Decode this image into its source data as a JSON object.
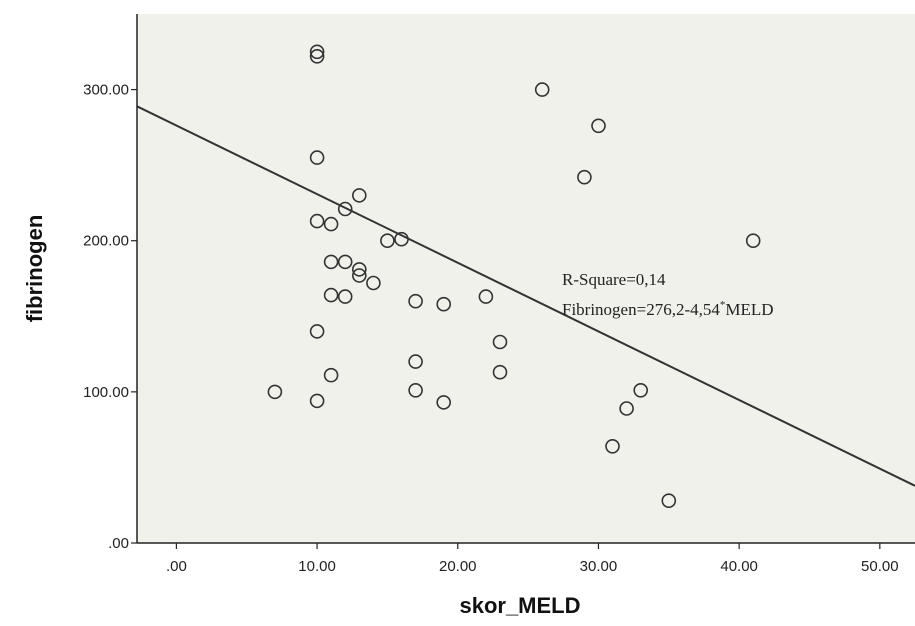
{
  "chart_data": {
    "type": "scatter",
    "title": "",
    "xlabel": "skor_MELD",
    "ylabel": "fibrinogen",
    "xlim": [
      -2.8,
      52.5
    ],
    "ylim": [
      0,
      350
    ],
    "x_ticks": [
      ".00",
      "10.00",
      "20.00",
      "30.00",
      "40.00",
      "50.00"
    ],
    "x_tick_values": [
      0,
      10,
      20,
      30,
      40,
      50
    ],
    "y_ticks": [
      ".00",
      "100.00",
      "200.00",
      "300.00"
    ],
    "y_tick_values": [
      0,
      100,
      200,
      300
    ],
    "grid": false,
    "points": [
      {
        "x": 7,
        "y": 100
      },
      {
        "x": 10,
        "y": 325
      },
      {
        "x": 10,
        "y": 322
      },
      {
        "x": 10,
        "y": 255
      },
      {
        "x": 10,
        "y": 213
      },
      {
        "x": 10,
        "y": 140
      },
      {
        "x": 10,
        "y": 94
      },
      {
        "x": 11,
        "y": 211
      },
      {
        "x": 11,
        "y": 186
      },
      {
        "x": 11,
        "y": 164
      },
      {
        "x": 11,
        "y": 111
      },
      {
        "x": 12,
        "y": 221
      },
      {
        "x": 12,
        "y": 186
      },
      {
        "x": 12,
        "y": 163
      },
      {
        "x": 13,
        "y": 230
      },
      {
        "x": 13,
        "y": 181
      },
      {
        "x": 13,
        "y": 177
      },
      {
        "x": 14,
        "y": 172
      },
      {
        "x": 15,
        "y": 200
      },
      {
        "x": 16,
        "y": 201
      },
      {
        "x": 17,
        "y": 160
      },
      {
        "x": 17,
        "y": 120
      },
      {
        "x": 17,
        "y": 101
      },
      {
        "x": 19,
        "y": 158
      },
      {
        "x": 19,
        "y": 93
      },
      {
        "x": 22,
        "y": 163
      },
      {
        "x": 23,
        "y": 133
      },
      {
        "x": 23,
        "y": 113
      },
      {
        "x": 26,
        "y": 300
      },
      {
        "x": 29,
        "y": 242
      },
      {
        "x": 30,
        "y": 276
      },
      {
        "x": 31,
        "y": 64
      },
      {
        "x": 32,
        "y": 89
      },
      {
        "x": 33,
        "y": 101
      },
      {
        "x": 35,
        "y": 28
      },
      {
        "x": 41,
        "y": 200
      }
    ],
    "fit_line": {
      "intercept": 276.2,
      "slope": -4.54
    },
    "annotations": {
      "r_square": "R-Square=0,14",
      "equation_main": "Fibrinogen=276,2-4,54",
      "equation_sup": "*",
      "equation_tail": "MELD"
    },
    "colors": {
      "plot_background": "#f1f1ec",
      "marker_stroke": "#333333",
      "fit_line": "#333333",
      "axis": "#222222"
    }
  }
}
